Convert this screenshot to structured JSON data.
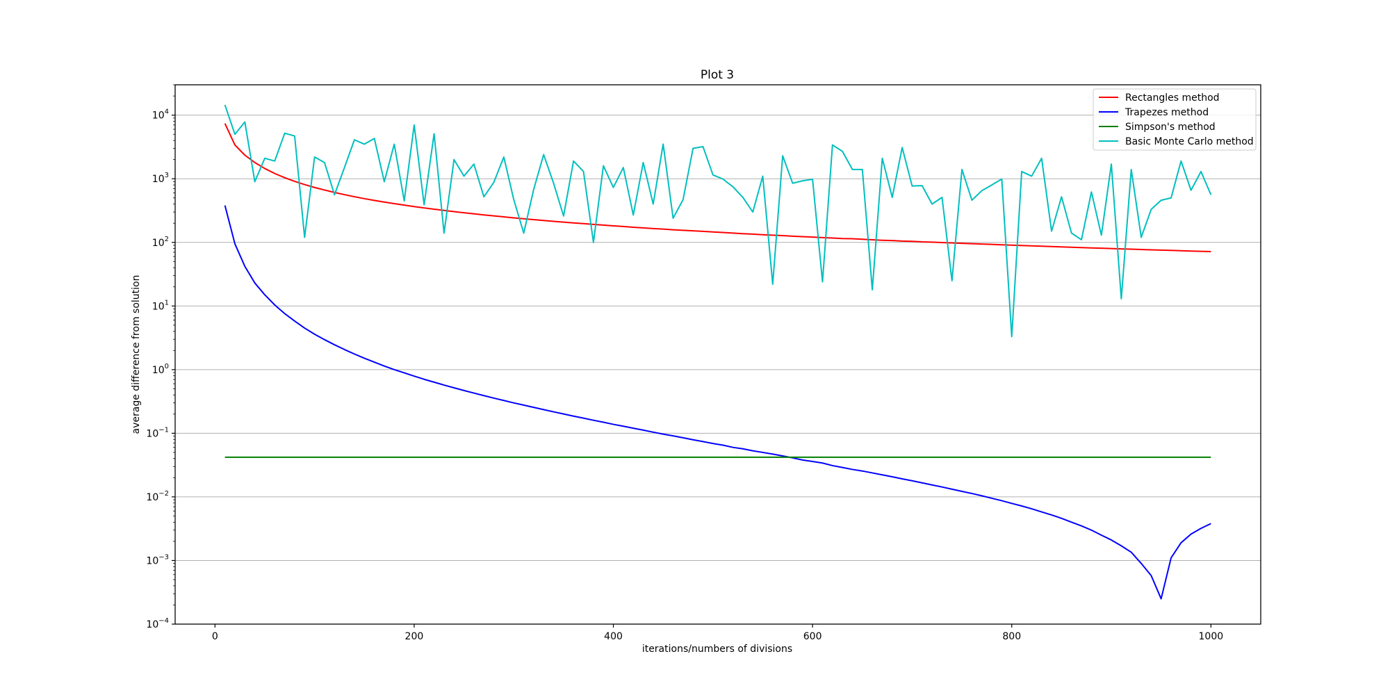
{
  "chart_data": {
    "type": "line",
    "title": "Plot 3",
    "xlabel": "iterations/numbers of divisions",
    "ylabel": "average difference from solution",
    "y_scale": "log",
    "xlim": [
      -40,
      1050
    ],
    "ylim": [
      0.0001,
      30000
    ],
    "grid": "horizontal major lines",
    "legend_position": "top-right",
    "x_ticks": [
      0,
      200,
      400,
      600,
      800,
      1000
    ],
    "x_tick_labels": [
      "0",
      "200",
      "400",
      "600",
      "800",
      "1000"
    ],
    "y_ticks": [
      0.0001,
      0.001,
      0.01,
      0.1,
      1,
      10,
      100,
      1000,
      10000
    ],
    "y_tick_labels": [
      {
        "base": "10",
        "exp": "−4"
      },
      {
        "base": "10",
        "exp": "−3"
      },
      {
        "base": "10",
        "exp": "−2"
      },
      {
        "base": "10",
        "exp": "−1"
      },
      {
        "base": "10",
        "exp": "0"
      },
      {
        "base": "10",
        "exp": "1"
      },
      {
        "base": "10",
        "exp": "2"
      },
      {
        "base": "10",
        "exp": "3"
      },
      {
        "base": "10",
        "exp": "4"
      }
    ],
    "x": [
      10,
      20,
      30,
      40,
      50,
      60,
      70,
      80,
      90,
      100,
      110,
      120,
      130,
      140,
      150,
      160,
      170,
      180,
      190,
      200,
      210,
      220,
      230,
      240,
      250,
      260,
      270,
      280,
      290,
      300,
      310,
      320,
      330,
      340,
      350,
      360,
      370,
      380,
      390,
      400,
      410,
      420,
      430,
      440,
      450,
      460,
      470,
      480,
      490,
      500,
      510,
      520,
      530,
      540,
      550,
      560,
      570,
      580,
      590,
      600,
      610,
      620,
      630,
      640,
      650,
      660,
      670,
      680,
      690,
      700,
      710,
      720,
      730,
      740,
      750,
      760,
      770,
      780,
      790,
      800,
      810,
      820,
      830,
      840,
      850,
      860,
      870,
      880,
      890,
      900,
      910,
      920,
      930,
      940,
      950,
      960,
      970,
      980,
      990,
      1000
    ],
    "series": [
      {
        "name": "Rectangles method",
        "color": "#ff0000",
        "values": [
          7400,
          3400,
          2350,
          1800,
          1450,
          1210,
          1040,
          910,
          810,
          730,
          665,
          610,
          563,
          522,
          487,
          457,
          430,
          406,
          385,
          365,
          348,
          332,
          318,
          304,
          292,
          281,
          270,
          261,
          252,
          243,
          235,
          228,
          221,
          214,
          208,
          202,
          197,
          192,
          187,
          182,
          178,
          173,
          169,
          165,
          162,
          158,
          155,
          152,
          149,
          146,
          143,
          140,
          137,
          135,
          132,
          130,
          128,
          125,
          123,
          121,
          119,
          117,
          115,
          114,
          112,
          110,
          108,
          107,
          105,
          104,
          102,
          101,
          99.5,
          98,
          96.7,
          95.4,
          94.1,
          92.9,
          91.7,
          90.5,
          89.3,
          88.2,
          87.1,
          86,
          85,
          83.9,
          82.9,
          81.9,
          81,
          80,
          79.1,
          78.2,
          77.3,
          76.4,
          75.6,
          74.8,
          73.9,
          73.1,
          72.4,
          71.6
        ]
      },
      {
        "name": "Trapezes method",
        "color": "#0000ff",
        "values": [
          380,
          95,
          42,
          23,
          15,
          10.4,
          7.6,
          5.8,
          4.5,
          3.6,
          2.96,
          2.46,
          2.07,
          1.76,
          1.51,
          1.31,
          1.14,
          1.0,
          0.89,
          0.79,
          0.705,
          0.635,
          0.572,
          0.518,
          0.47,
          0.428,
          0.39,
          0.357,
          0.327,
          0.3,
          0.277,
          0.255,
          0.235,
          0.217,
          0.201,
          0.186,
          0.173,
          0.16,
          0.149,
          0.138,
          0.129,
          0.12,
          0.112,
          0.104,
          0.097,
          0.091,
          0.085,
          0.079,
          0.074,
          0.069,
          0.065,
          0.06,
          0.057,
          0.053,
          0.05,
          0.047,
          0.044,
          0.041,
          0.038,
          0.036,
          0.034,
          0.031,
          0.029,
          0.027,
          0.0255,
          0.0238,
          0.0222,
          0.0207,
          0.0192,
          0.0179,
          0.0166,
          0.0154,
          0.0143,
          0.0132,
          0.0122,
          0.0113,
          0.0104,
          0.0095,
          0.0087,
          0.0079,
          0.0072,
          0.0065,
          0.0058,
          0.0052,
          0.0046,
          0.004,
          0.0035,
          0.003,
          0.0025,
          0.0021,
          0.0017,
          0.00135,
          0.0009,
          0.00058,
          0.00025,
          0.0011,
          0.0019,
          0.0026,
          0.0032,
          0.0038
        ]
      },
      {
        "name": "Simpson's method",
        "color": "#008000",
        "values": [
          0.042,
          0.042,
          0.042,
          0.042,
          0.042,
          0.042,
          0.042,
          0.042,
          0.042,
          0.042,
          0.042,
          0.042,
          0.042,
          0.042,
          0.042,
          0.042,
          0.042,
          0.042,
          0.042,
          0.042,
          0.042,
          0.042,
          0.042,
          0.042,
          0.042,
          0.042,
          0.042,
          0.042,
          0.042,
          0.042,
          0.042,
          0.042,
          0.042,
          0.042,
          0.042,
          0.042,
          0.042,
          0.042,
          0.042,
          0.042,
          0.042,
          0.042,
          0.042,
          0.042,
          0.042,
          0.042,
          0.042,
          0.042,
          0.042,
          0.042,
          0.042,
          0.042,
          0.042,
          0.042,
          0.042,
          0.042,
          0.042,
          0.042,
          0.042,
          0.042,
          0.042,
          0.042,
          0.042,
          0.042,
          0.042,
          0.042,
          0.042,
          0.042,
          0.042,
          0.042,
          0.042,
          0.042,
          0.042,
          0.042,
          0.042,
          0.042,
          0.042,
          0.042,
          0.042,
          0.042,
          0.042,
          0.042,
          0.042,
          0.042,
          0.042,
          0.042,
          0.042,
          0.042,
          0.042,
          0.042,
          0.042,
          0.042,
          0.042,
          0.042,
          0.042,
          0.042,
          0.042,
          0.042,
          0.042,
          0.042
        ]
      },
      {
        "name": "Basic Monte Carlo method",
        "color": "#00bfbf",
        "values": [
          14500,
          5000,
          7800,
          900,
          2100,
          1900,
          5200,
          4700,
          120,
          2200,
          1800,
          560,
          1500,
          4100,
          3500,
          4300,
          900,
          3500,
          450,
          7000,
          390,
          5100,
          140,
          2000,
          1100,
          1700,
          520,
          880,
          2200,
          470,
          140,
          680,
          2400,
          850,
          260,
          1900,
          1300,
          100,
          1600,
          730,
          1500,
          270,
          1800,
          400,
          3500,
          240,
          470,
          3000,
          3200,
          1150,
          990,
          750,
          510,
          300,
          1100,
          22,
          2300,
          850,
          930,
          980,
          24,
          3400,
          2700,
          1400,
          1400,
          18,
          2100,
          510,
          3100,
          770,
          780,
          400,
          510,
          25,
          1400,
          460,
          650,
          800,
          990,
          3.3,
          1300,
          1100,
          2100,
          150,
          520,
          140,
          110,
          620,
          130,
          1700,
          13,
          1400,
          120,
          330,
          460,
          500,
          1900,
          660,
          1300,
          560
        ]
      }
    ]
  }
}
